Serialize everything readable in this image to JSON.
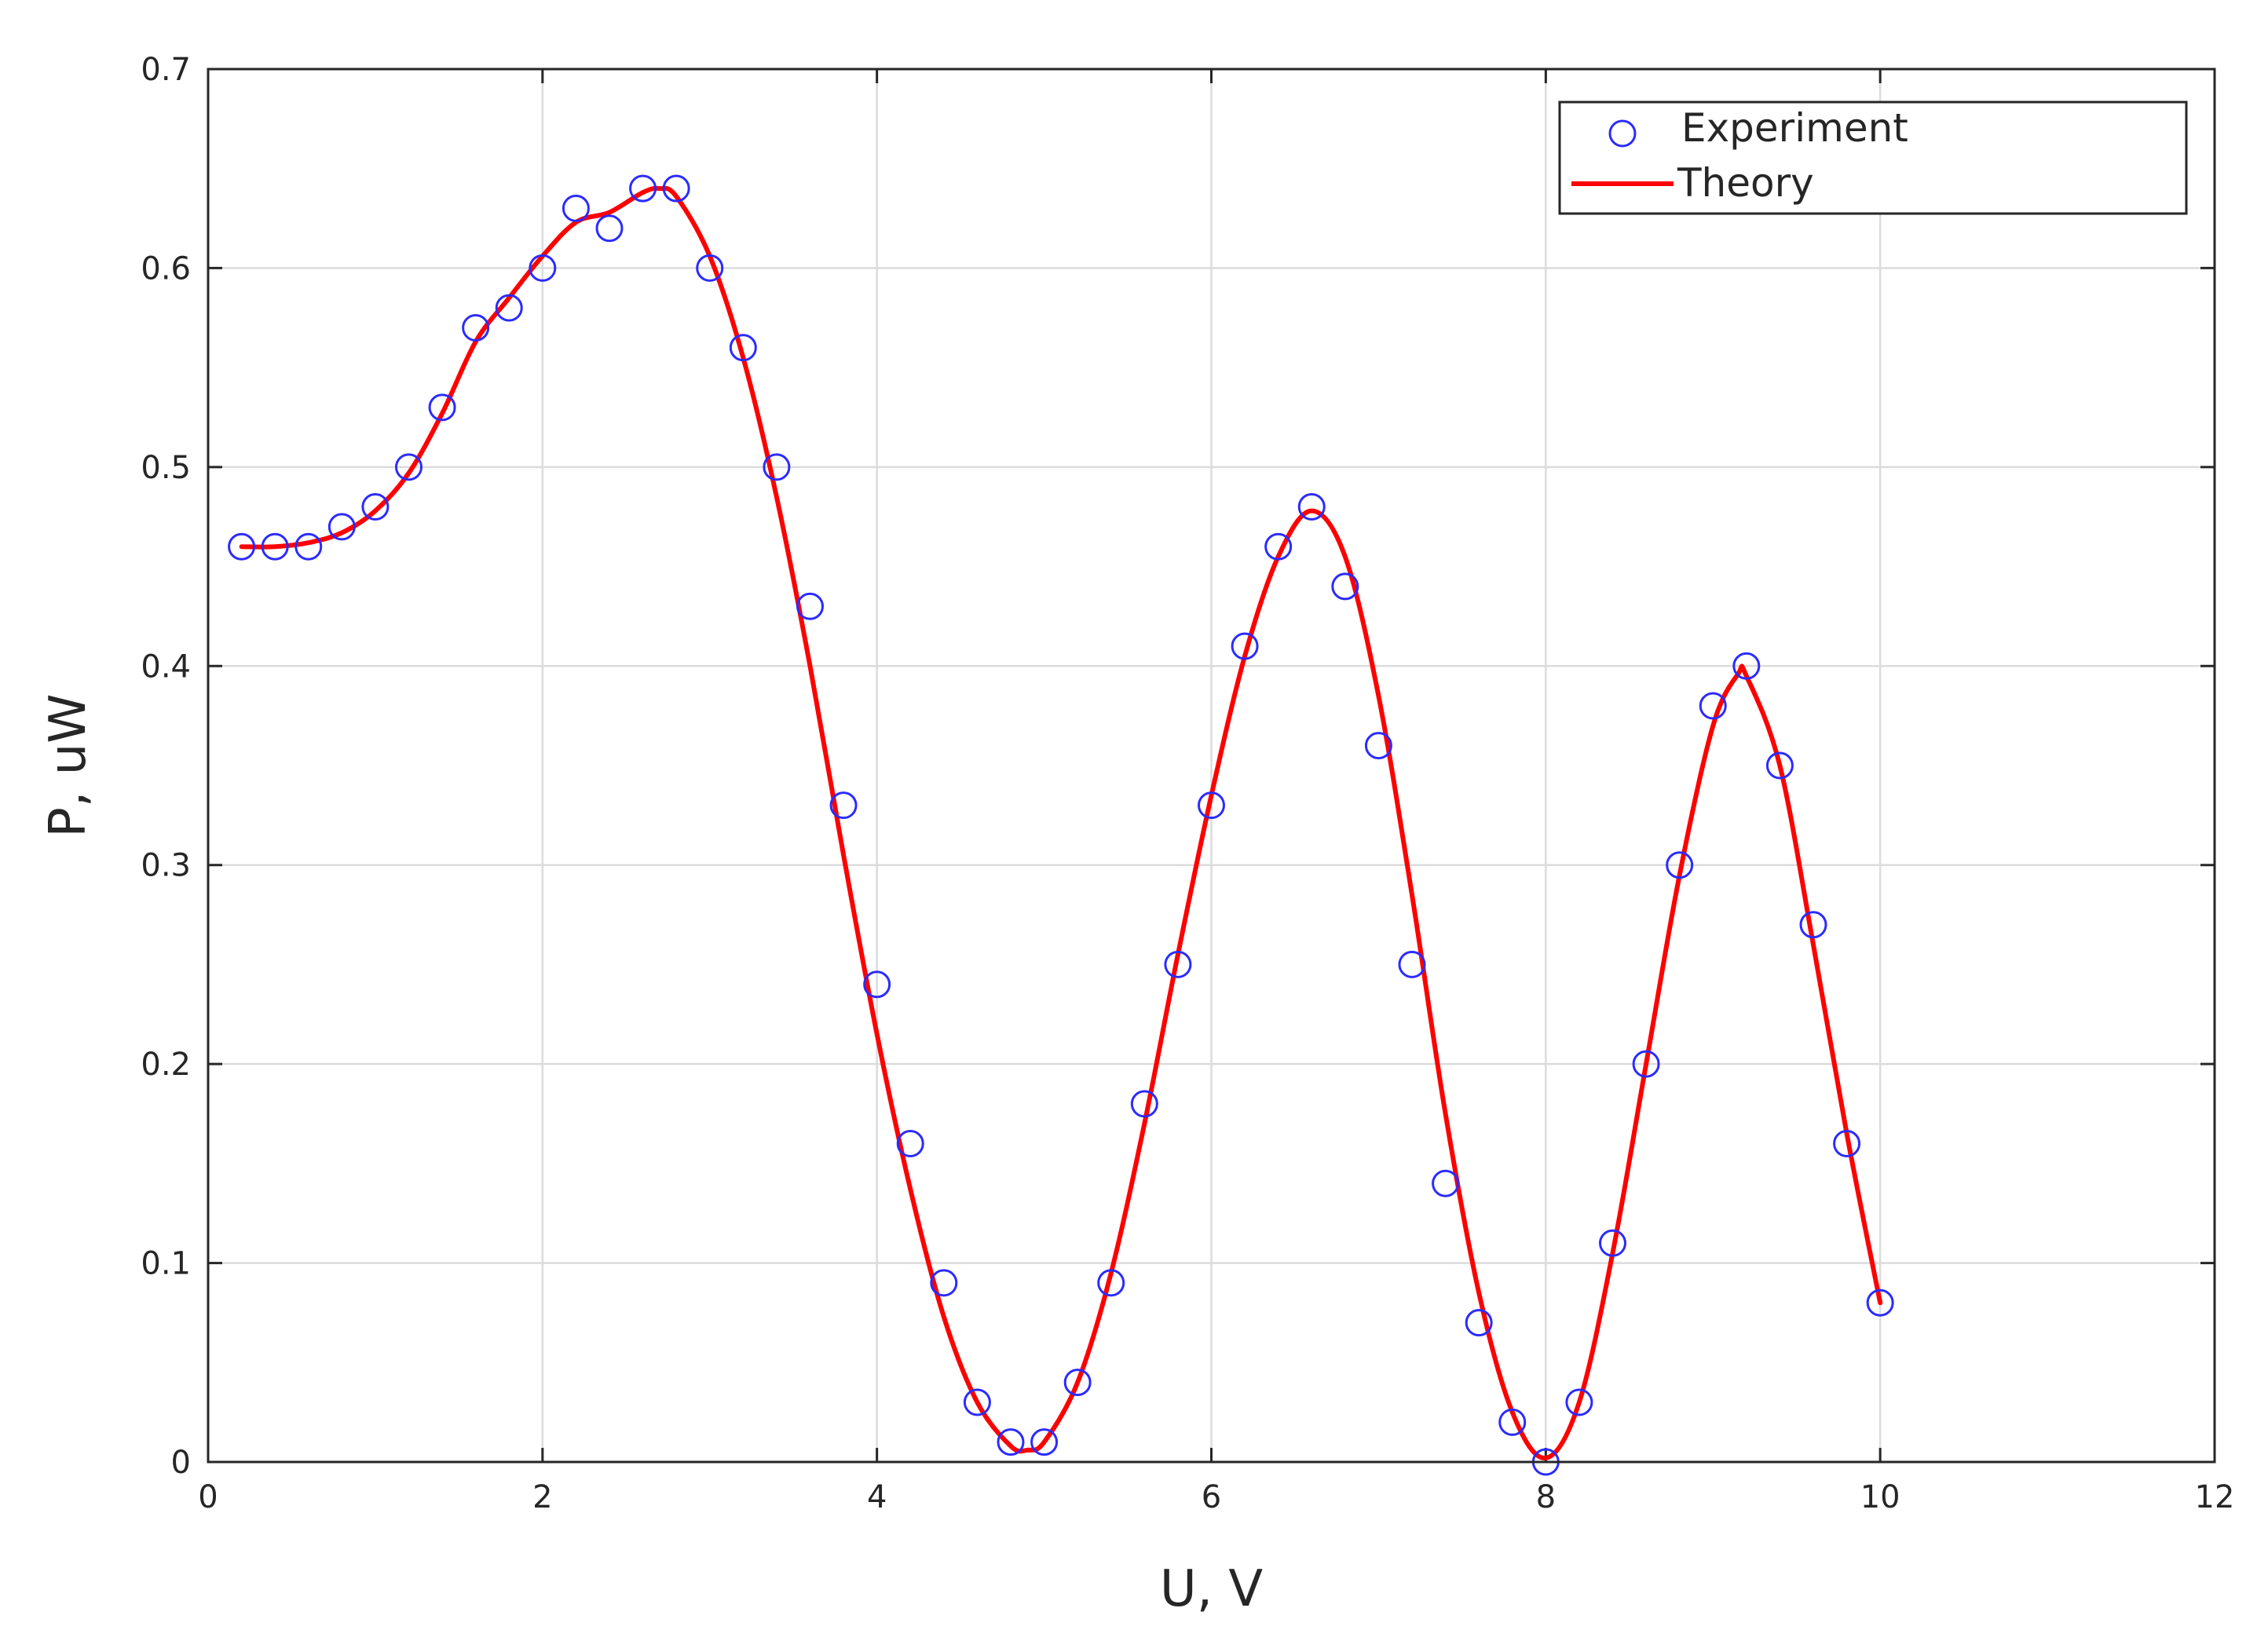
{
  "chart_data": {
    "type": "scatter",
    "title": "",
    "xlabel": "U, V",
    "ylabel": "P, uW",
    "xlim": [
      0,
      12
    ],
    "ylim": [
      0,
      0.7
    ],
    "xticks": [
      "0",
      "2",
      "4",
      "6",
      "8",
      "10",
      "12"
    ],
    "yticks": [
      "0",
      "0.1",
      "0.2",
      "0.3",
      "0.4",
      "0.5",
      "0.6",
      "0.7"
    ],
    "grid": true,
    "legend_position": "top-right",
    "series": [
      {
        "name": "Experiment",
        "kind": "scatter",
        "marker": "circle",
        "color": "#2b2bff",
        "x": [
          0.2,
          0.4,
          0.6,
          0.8,
          1.0,
          1.2,
          1.4,
          1.6,
          1.8,
          2.0,
          2.2,
          2.4,
          2.6,
          2.8,
          3.0,
          3.2,
          3.4,
          3.6,
          3.8,
          4.0,
          4.2,
          4.4,
          4.6,
          4.8,
          5.0,
          5.2,
          5.4,
          5.6,
          5.8,
          6.0,
          6.2,
          6.4,
          6.6,
          6.8,
          7.0,
          7.2,
          7.4,
          7.6,
          7.8,
          8.0,
          8.2,
          8.4,
          8.6,
          8.8,
          9.0,
          9.2,
          9.4,
          9.6,
          9.8,
          10.0
        ],
        "y": [
          0.46,
          0.46,
          0.46,
          0.47,
          0.48,
          0.5,
          0.53,
          0.57,
          0.58,
          0.6,
          0.63,
          0.62,
          0.64,
          0.64,
          0.6,
          0.56,
          0.5,
          0.43,
          0.33,
          0.24,
          0.16,
          0.09,
          0.03,
          0.01,
          0.01,
          0.04,
          0.09,
          0.18,
          0.25,
          0.33,
          0.41,
          0.46,
          0.48,
          0.44,
          0.36,
          0.25,
          0.14,
          0.07,
          0.02,
          0.0,
          0.03,
          0.11,
          0.2,
          0.3,
          0.38,
          0.4,
          0.35,
          0.27,
          0.16,
          0.08
        ]
      },
      {
        "name": "Theory",
        "kind": "line",
        "color": "#ff0000",
        "x": [
          0.2,
          0.4,
          0.6,
          0.8,
          1.0,
          1.2,
          1.4,
          1.6,
          1.8,
          2.0,
          2.2,
          2.4,
          2.6,
          2.7,
          2.8,
          3.0,
          3.2,
          3.4,
          3.6,
          3.8,
          4.0,
          4.2,
          4.4,
          4.6,
          4.8,
          4.9,
          5.0,
          5.2,
          5.4,
          5.6,
          5.8,
          6.0,
          6.2,
          6.4,
          6.6,
          6.8,
          7.0,
          7.2,
          7.4,
          7.6,
          7.8,
          8.0,
          8.2,
          8.4,
          8.6,
          8.8,
          9.0,
          9.15,
          9.2,
          9.4,
          9.6,
          9.8,
          10.0
        ],
        "y": [
          0.46,
          0.46,
          0.462,
          0.467,
          0.478,
          0.497,
          0.527,
          0.563,
          0.585,
          0.606,
          0.623,
          0.628,
          0.638,
          0.64,
          0.636,
          0.606,
          0.555,
          0.485,
          0.4,
          0.305,
          0.215,
          0.137,
          0.073,
          0.03,
          0.008,
          0.006,
          0.01,
          0.04,
          0.095,
          0.17,
          0.255,
          0.335,
          0.405,
          0.455,
          0.478,
          0.455,
          0.385,
          0.285,
          0.175,
          0.085,
          0.025,
          0.002,
          0.03,
          0.105,
          0.2,
          0.295,
          0.37,
          0.396,
          0.395,
          0.35,
          0.26,
          0.165,
          0.08
        ]
      }
    ]
  }
}
